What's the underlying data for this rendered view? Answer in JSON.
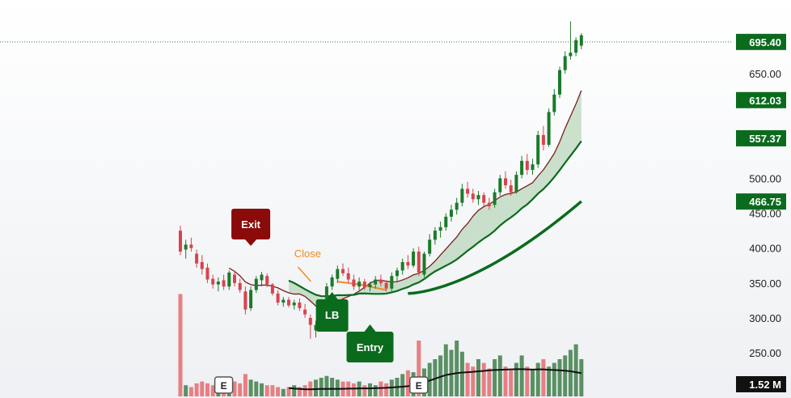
{
  "chart_data": {
    "type": "candlestick",
    "y_axis_ticks": [
      250,
      300,
      350,
      400,
      450,
      500,
      650
    ],
    "ylim": [
      220,
      740
    ],
    "price_tags": [
      {
        "value": 695.4,
        "label": "695.40",
        "color": "#0b6b1d"
      },
      {
        "value": 612.03,
        "label": "612.03",
        "color": "#0b6b1d"
      },
      {
        "value": 557.37,
        "label": "557.37",
        "color": "#0b6b1d"
      },
      {
        "value": 466.75,
        "label": "466.75",
        "color": "#0b6b1d"
      }
    ],
    "volume_tag": {
      "label": "1.52 M",
      "color": "#111111"
    },
    "reference_line": 695.4,
    "candles": [
      {
        "o": 425,
        "h": 432,
        "l": 390,
        "c": 395
      },
      {
        "o": 398,
        "h": 412,
        "l": 385,
        "c": 405
      },
      {
        "o": 405,
        "h": 415,
        "l": 395,
        "c": 400
      },
      {
        "o": 392,
        "h": 398,
        "l": 372,
        "c": 378
      },
      {
        "o": 380,
        "h": 390,
        "l": 362,
        "c": 370
      },
      {
        "o": 372,
        "h": 378,
        "l": 350,
        "c": 355
      },
      {
        "o": 356,
        "h": 362,
        "l": 342,
        "c": 348
      },
      {
        "o": 348,
        "h": 358,
        "l": 338,
        "c": 352
      },
      {
        "o": 354,
        "h": 362,
        "l": 340,
        "c": 345
      },
      {
        "o": 345,
        "h": 368,
        "l": 340,
        "c": 365
      },
      {
        "o": 362,
        "h": 368,
        "l": 345,
        "c": 350
      },
      {
        "o": 350,
        "h": 356,
        "l": 336,
        "c": 340
      },
      {
        "o": 338,
        "h": 345,
        "l": 305,
        "c": 312
      },
      {
        "o": 314,
        "h": 345,
        "l": 310,
        "c": 340
      },
      {
        "o": 340,
        "h": 360,
        "l": 336,
        "c": 356
      },
      {
        "o": 354,
        "h": 366,
        "l": 345,
        "c": 362
      },
      {
        "o": 360,
        "h": 364,
        "l": 344,
        "c": 348
      },
      {
        "o": 348,
        "h": 350,
        "l": 332,
        "c": 335
      },
      {
        "o": 335,
        "h": 340,
        "l": 318,
        "c": 322
      },
      {
        "o": 322,
        "h": 330,
        "l": 316,
        "c": 326
      },
      {
        "o": 326,
        "h": 330,
        "l": 315,
        "c": 318
      },
      {
        "o": 318,
        "h": 326,
        "l": 312,
        "c": 322
      },
      {
        "o": 322,
        "h": 328,
        "l": 310,
        "c": 314
      },
      {
        "o": 312,
        "h": 320,
        "l": 300,
        "c": 305
      },
      {
        "o": 300,
        "h": 305,
        "l": 270,
        "c": 290
      },
      {
        "o": 282,
        "h": 296,
        "l": 272,
        "c": 290
      },
      {
        "o": 292,
        "h": 320,
        "l": 285,
        "c": 316
      },
      {
        "o": 316,
        "h": 350,
        "l": 312,
        "c": 345
      },
      {
        "o": 345,
        "h": 362,
        "l": 340,
        "c": 358
      },
      {
        "o": 356,
        "h": 375,
        "l": 350,
        "c": 370
      },
      {
        "o": 370,
        "h": 378,
        "l": 360,
        "c": 364
      },
      {
        "o": 364,
        "h": 372,
        "l": 350,
        "c": 355
      },
      {
        "o": 355,
        "h": 362,
        "l": 340,
        "c": 345
      },
      {
        "o": 345,
        "h": 358,
        "l": 340,
        "c": 352
      },
      {
        "o": 352,
        "h": 356,
        "l": 340,
        "c": 344
      },
      {
        "o": 344,
        "h": 352,
        "l": 338,
        "c": 348
      },
      {
        "o": 348,
        "h": 360,
        "l": 342,
        "c": 355
      },
      {
        "o": 355,
        "h": 362,
        "l": 345,
        "c": 350
      },
      {
        "o": 350,
        "h": 354,
        "l": 338,
        "c": 342
      },
      {
        "o": 342,
        "h": 365,
        "l": 338,
        "c": 360
      },
      {
        "o": 360,
        "h": 372,
        "l": 352,
        "c": 368
      },
      {
        "o": 368,
        "h": 385,
        "l": 362,
        "c": 380
      },
      {
        "o": 380,
        "h": 390,
        "l": 370,
        "c": 375
      },
      {
        "o": 375,
        "h": 400,
        "l": 372,
        "c": 395
      },
      {
        "o": 395,
        "h": 402,
        "l": 360,
        "c": 365
      },
      {
        "o": 362,
        "h": 395,
        "l": 358,
        "c": 392
      },
      {
        "o": 392,
        "h": 420,
        "l": 388,
        "c": 412
      },
      {
        "o": 412,
        "h": 430,
        "l": 405,
        "c": 425
      },
      {
        "o": 425,
        "h": 438,
        "l": 415,
        "c": 430
      },
      {
        "o": 430,
        "h": 450,
        "l": 425,
        "c": 445
      },
      {
        "o": 445,
        "h": 462,
        "l": 438,
        "c": 455
      },
      {
        "o": 455,
        "h": 472,
        "l": 448,
        "c": 465
      },
      {
        "o": 465,
        "h": 492,
        "l": 460,
        "c": 485
      },
      {
        "o": 485,
        "h": 495,
        "l": 472,
        "c": 478
      },
      {
        "o": 478,
        "h": 485,
        "l": 465,
        "c": 470
      },
      {
        "o": 470,
        "h": 482,
        "l": 462,
        "c": 476
      },
      {
        "o": 476,
        "h": 480,
        "l": 460,
        "c": 465
      },
      {
        "o": 465,
        "h": 472,
        "l": 455,
        "c": 460
      },
      {
        "o": 462,
        "h": 485,
        "l": 458,
        "c": 480
      },
      {
        "o": 480,
        "h": 505,
        "l": 475,
        "c": 500
      },
      {
        "o": 500,
        "h": 510,
        "l": 485,
        "c": 490
      },
      {
        "o": 490,
        "h": 498,
        "l": 475,
        "c": 480
      },
      {
        "o": 480,
        "h": 510,
        "l": 478,
        "c": 505
      },
      {
        "o": 505,
        "h": 532,
        "l": 500,
        "c": 525
      },
      {
        "o": 525,
        "h": 535,
        "l": 505,
        "c": 512
      },
      {
        "o": 512,
        "h": 528,
        "l": 505,
        "c": 520
      },
      {
        "o": 520,
        "h": 568,
        "l": 515,
        "c": 562
      },
      {
        "o": 562,
        "h": 575,
        "l": 540,
        "c": 548
      },
      {
        "o": 548,
        "h": 600,
        "l": 545,
        "c": 595
      },
      {
        "o": 595,
        "h": 628,
        "l": 590,
        "c": 620
      },
      {
        "o": 620,
        "h": 660,
        "l": 615,
        "c": 655
      },
      {
        "o": 655,
        "h": 682,
        "l": 650,
        "c": 675
      },
      {
        "o": 675,
        "h": 725,
        "l": 670,
        "c": 680
      },
      {
        "o": 680,
        "h": 702,
        "l": 675,
        "c": 698
      },
      {
        "o": 690,
        "h": 708,
        "l": 685,
        "c": 705
      }
    ],
    "volumes": [
      55,
      6,
      5,
      7,
      8,
      7,
      6,
      8,
      9,
      10,
      8,
      7,
      12,
      9,
      8,
      7,
      6,
      6,
      5,
      4,
      5,
      6,
      5,
      6,
      8,
      9,
      10,
      11,
      10,
      9,
      8,
      8,
      7,
      8,
      6,
      7,
      6,
      8,
      7,
      9,
      10,
      12,
      14,
      13,
      30,
      15,
      18,
      20,
      22,
      28,
      25,
      30,
      24,
      18,
      16,
      20,
      18,
      15,
      20,
      22,
      16,
      14,
      18,
      22,
      16,
      14,
      18,
      20,
      16,
      18,
      20,
      22,
      25,
      28,
      20
    ],
    "volume_ma": [
      null,
      null,
      null,
      null,
      null,
      null,
      null,
      null,
      null,
      null,
      null,
      null,
      null,
      null,
      null,
      null,
      null,
      null,
      null,
      null,
      4.5,
      4.2,
      4.0,
      3.8,
      3.8,
      3.9,
      4.0,
      4.0,
      4.1,
      4.0,
      4.1,
      4.2,
      4.2,
      4.3,
      4.3,
      4.3,
      4.4,
      4.5,
      4.6,
      4.8,
      5.0,
      5.2,
      5.5,
      6.0,
      6.8,
      7.5,
      8.5,
      9.5,
      10.5,
      11.5,
      12.0,
      12.5,
      12.8,
      13.0,
      13.2,
      13.5,
      13.7,
      14.0,
      14.2,
      14.3,
      14.4,
      14.5,
      14.6,
      14.6,
      14.5,
      14.4,
      14.5,
      14.5,
      14.3,
      14.2,
      14.0,
      13.8,
      13.5,
      13.0,
      12.5
    ],
    "annotations": [
      {
        "type": "flag-down",
        "label": "Exit",
        "index": 13,
        "color": "#8b0a0a"
      },
      {
        "type": "flag-up",
        "label": "LB",
        "index": 28,
        "color": "#0b6b1d"
      },
      {
        "type": "flag-up",
        "label": "Entry",
        "index": 35,
        "color": "#0b6b1d"
      },
      {
        "type": "text",
        "label": "Close",
        "index": 22,
        "color": "#f08a24"
      },
      {
        "type": "earnings",
        "label": "E",
        "index": 8
      },
      {
        "type": "earnings",
        "label": "E",
        "index": 44
      }
    ]
  }
}
